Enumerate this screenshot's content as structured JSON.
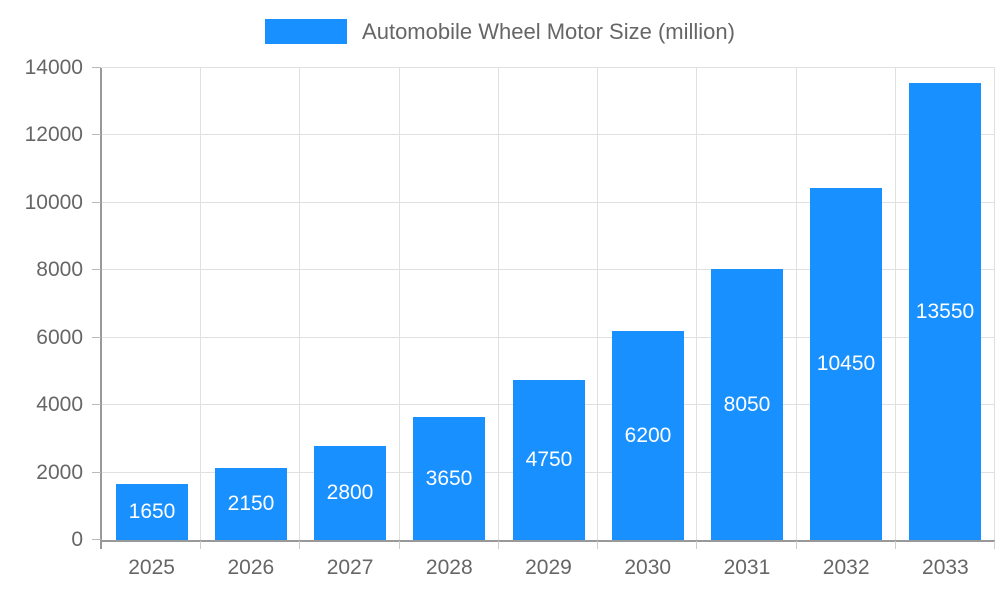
{
  "chart_data": {
    "type": "bar",
    "title": "Automobile Wheel Motor Size (million)",
    "legend": [
      {
        "label": "Automobile Wheel Motor Size (million)",
        "color": "#1890ff"
      }
    ],
    "legend_position": "top-center",
    "categories": [
      "2025",
      "2026",
      "2027",
      "2028",
      "2029",
      "2030",
      "2031",
      "2032",
      "2033"
    ],
    "values": [
      1650,
      2150,
      2800,
      3650,
      4750,
      6200,
      8050,
      10450,
      13550
    ],
    "value_labels": [
      "1650",
      "2150",
      "2800",
      "3650",
      "4750",
      "6200",
      "8050",
      "10450",
      "13550"
    ],
    "value_label_position": "inside-center",
    "value_label_color": "#ffffff",
    "xlabel": "",
    "ylabel": "",
    "ylim": [
      0,
      14000
    ],
    "yticks": [
      0,
      2000,
      4000,
      6000,
      8000,
      10000,
      12000,
      14000
    ],
    "grid": true,
    "bar_color": "#1890ff",
    "axis_color": "#999999",
    "grid_color": "#e0e0e0",
    "text_color": "#666666"
  }
}
